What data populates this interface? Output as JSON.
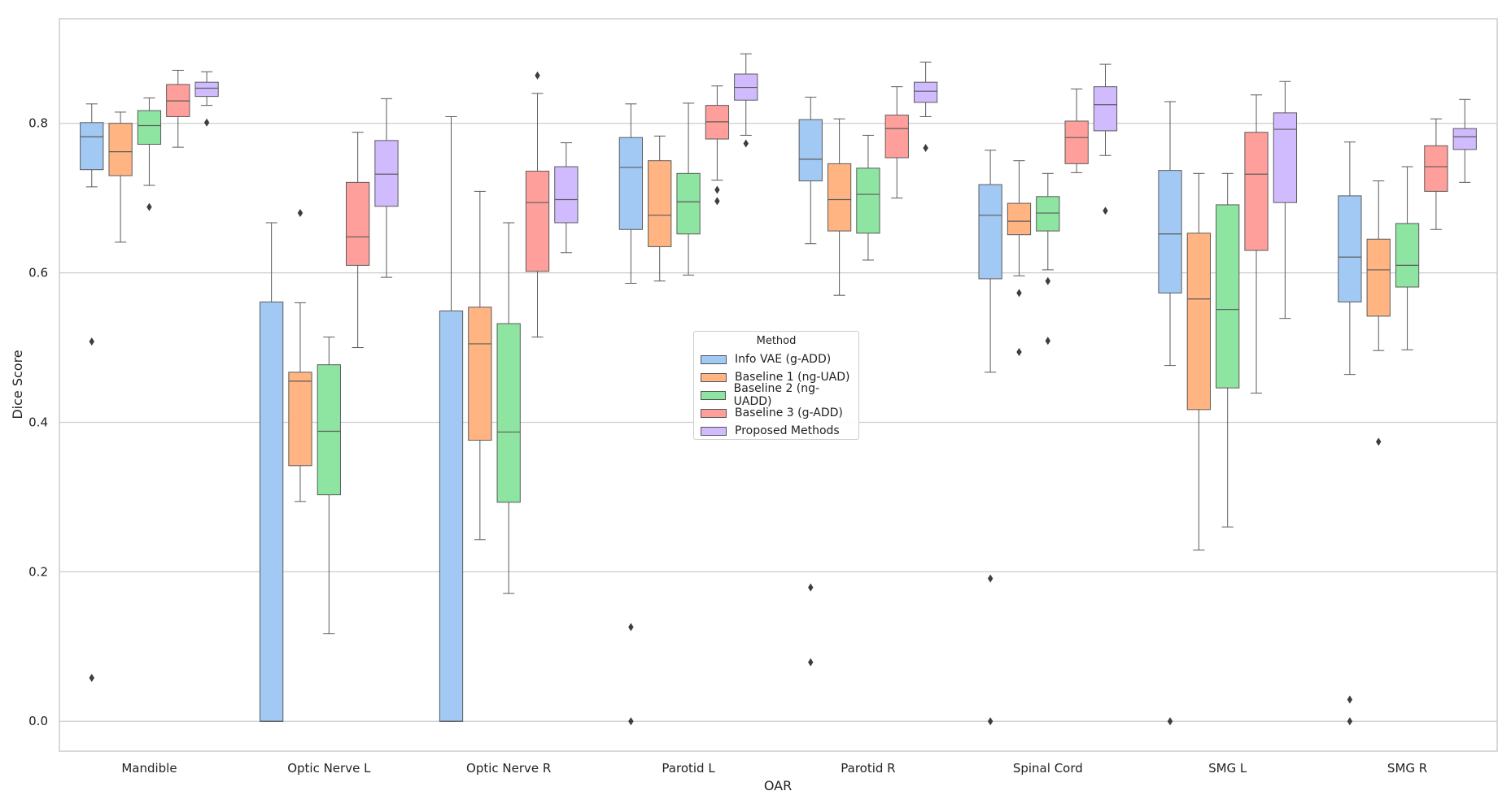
{
  "chart_data": {
    "type": "boxplot",
    "title": "",
    "xlabel": "OAR",
    "ylabel": "Dice Score",
    "ylim": [
      -0.04,
      0.94
    ],
    "yticks": [
      "0.0",
      "0.2",
      "0.4",
      "0.6",
      "0.8"
    ],
    "grid": "horizontal",
    "legend_title": "Method",
    "legend_placement": "center",
    "categories": [
      "Mandible",
      "Optic Nerve L",
      "Optic Nerve R",
      "Parotid L",
      "Parotid R",
      "Spinal Cord",
      "SMG L",
      "SMG R"
    ],
    "series": [
      {
        "name": "Info VAE (g-ADD)",
        "color": "#a1c9f4",
        "boxes": [
          {
            "whislo": 0.715,
            "q1": 0.738,
            "med": 0.782,
            "q3": 0.801,
            "whishi": 0.826,
            "fliers": [
              0.508,
              0.058
            ]
          },
          {
            "whislo": 0.0,
            "q1": 0.0,
            "med": 0.0,
            "q3": 0.561,
            "whishi": 0.667,
            "fliers": []
          },
          {
            "whislo": 0.0,
            "q1": 0.0,
            "med": 0.0,
            "q3": 0.549,
            "whishi": 0.809,
            "fliers": []
          },
          {
            "whislo": 0.586,
            "q1": 0.658,
            "med": 0.741,
            "q3": 0.781,
            "whishi": 0.826,
            "fliers": [
              0.126,
              0.0
            ]
          },
          {
            "whislo": 0.639,
            "q1": 0.723,
            "med": 0.752,
            "q3": 0.805,
            "whishi": 0.835,
            "fliers": [
              0.179,
              0.079
            ]
          },
          {
            "whislo": 0.467,
            "q1": 0.592,
            "med": 0.677,
            "q3": 0.718,
            "whishi": 0.764,
            "fliers": [
              0.191,
              0.0
            ]
          },
          {
            "whislo": 0.476,
            "q1": 0.573,
            "med": 0.652,
            "q3": 0.737,
            "whishi": 0.829,
            "fliers": [
              0.0
            ]
          },
          {
            "whislo": 0.464,
            "q1": 0.561,
            "med": 0.621,
            "q3": 0.703,
            "whishi": 0.775,
            "fliers": [
              0.029,
              0.0
            ]
          }
        ]
      },
      {
        "name": "Baseline 1 (ng-UAD)",
        "color": "#ffb482",
        "boxes": [
          {
            "whislo": 0.641,
            "q1": 0.73,
            "med": 0.762,
            "q3": 0.8,
            "whishi": 0.815,
            "fliers": []
          },
          {
            "whislo": 0.294,
            "q1": 0.342,
            "med": 0.455,
            "q3": 0.467,
            "whishi": 0.56,
            "fliers": [
              0.68
            ]
          },
          {
            "whislo": 0.243,
            "q1": 0.376,
            "med": 0.505,
            "q3": 0.554,
            "whishi": 0.709,
            "fliers": []
          },
          {
            "whislo": 0.589,
            "q1": 0.635,
            "med": 0.677,
            "q3": 0.75,
            "whishi": 0.783,
            "fliers": []
          },
          {
            "whislo": 0.57,
            "q1": 0.656,
            "med": 0.698,
            "q3": 0.746,
            "whishi": 0.806,
            "fliers": []
          },
          {
            "whislo": 0.596,
            "q1": 0.651,
            "med": 0.669,
            "q3": 0.693,
            "whishi": 0.75,
            "fliers": [
              0.573,
              0.494
            ]
          },
          {
            "whislo": 0.229,
            "q1": 0.417,
            "med": 0.565,
            "q3": 0.653,
            "whishi": 0.733,
            "fliers": []
          },
          {
            "whislo": 0.496,
            "q1": 0.542,
            "med": 0.604,
            "q3": 0.645,
            "whishi": 0.723,
            "fliers": [
              0.374
            ]
          }
        ]
      },
      {
        "name": "Baseline 2 (ng-UADD)",
        "color": "#8de5a1",
        "boxes": [
          {
            "whislo": 0.717,
            "q1": 0.772,
            "med": 0.797,
            "q3": 0.817,
            "whishi": 0.834,
            "fliers": [
              0.688
            ]
          },
          {
            "whislo": 0.117,
            "q1": 0.303,
            "med": 0.388,
            "q3": 0.477,
            "whishi": 0.514,
            "fliers": []
          },
          {
            "whislo": 0.171,
            "q1": 0.293,
            "med": 0.387,
            "q3": 0.532,
            "whishi": 0.667,
            "fliers": []
          },
          {
            "whislo": 0.597,
            "q1": 0.652,
            "med": 0.695,
            "q3": 0.733,
            "whishi": 0.827,
            "fliers": []
          },
          {
            "whislo": 0.617,
            "q1": 0.653,
            "med": 0.705,
            "q3": 0.74,
            "whishi": 0.784,
            "fliers": []
          },
          {
            "whislo": 0.604,
            "q1": 0.656,
            "med": 0.68,
            "q3": 0.702,
            "whishi": 0.733,
            "fliers": [
              0.589,
              0.509
            ]
          },
          {
            "whislo": 0.26,
            "q1": 0.446,
            "med": 0.551,
            "q3": 0.691,
            "whishi": 0.733,
            "fliers": []
          },
          {
            "whislo": 0.497,
            "q1": 0.581,
            "med": 0.61,
            "q3": 0.666,
            "whishi": 0.742,
            "fliers": []
          }
        ]
      },
      {
        "name": "Baseline 3 (g-ADD)",
        "color": "#ff9f9b",
        "boxes": [
          {
            "whislo": 0.768,
            "q1": 0.809,
            "med": 0.83,
            "q3": 0.852,
            "whishi": 0.871,
            "fliers": []
          },
          {
            "whislo": 0.5,
            "q1": 0.61,
            "med": 0.648,
            "q3": 0.721,
            "whishi": 0.788,
            "fliers": []
          },
          {
            "whislo": 0.514,
            "q1": 0.602,
            "med": 0.694,
            "q3": 0.736,
            "whishi": 0.84,
            "fliers": [
              0.864
            ]
          },
          {
            "whislo": 0.724,
            "q1": 0.779,
            "med": 0.802,
            "q3": 0.824,
            "whishi": 0.85,
            "fliers": [
              0.711,
              0.696
            ]
          },
          {
            "whislo": 0.7,
            "q1": 0.754,
            "med": 0.793,
            "q3": 0.811,
            "whishi": 0.849,
            "fliers": []
          },
          {
            "whislo": 0.734,
            "q1": 0.746,
            "med": 0.781,
            "q3": 0.803,
            "whishi": 0.846,
            "fliers": []
          },
          {
            "whislo": 0.439,
            "q1": 0.63,
            "med": 0.732,
            "q3": 0.788,
            "whishi": 0.838,
            "fliers": []
          },
          {
            "whislo": 0.658,
            "q1": 0.709,
            "med": 0.742,
            "q3": 0.77,
            "whishi": 0.806,
            "fliers": []
          }
        ]
      },
      {
        "name": "Proposed Methods",
        "color": "#d0bbff",
        "boxes": [
          {
            "whislo": 0.824,
            "q1": 0.836,
            "med": 0.847,
            "q3": 0.855,
            "whishi": 0.869,
            "fliers": [
              0.801
            ]
          },
          {
            "whislo": 0.594,
            "q1": 0.689,
            "med": 0.732,
            "q3": 0.777,
            "whishi": 0.833,
            "fliers": []
          },
          {
            "whislo": 0.627,
            "q1": 0.667,
            "med": 0.698,
            "q3": 0.742,
            "whishi": 0.774,
            "fliers": []
          },
          {
            "whislo": 0.784,
            "q1": 0.831,
            "med": 0.848,
            "q3": 0.866,
            "whishi": 0.893,
            "fliers": [
              0.773
            ]
          },
          {
            "whislo": 0.809,
            "q1": 0.828,
            "med": 0.843,
            "q3": 0.855,
            "whishi": 0.882,
            "fliers": [
              0.767
            ]
          },
          {
            "whislo": 0.757,
            "q1": 0.79,
            "med": 0.825,
            "q3": 0.849,
            "whishi": 0.879,
            "fliers": [
              0.683
            ]
          },
          {
            "whislo": 0.539,
            "q1": 0.694,
            "med": 0.792,
            "q3": 0.814,
            "whishi": 0.856,
            "fliers": []
          },
          {
            "whislo": 0.721,
            "q1": 0.765,
            "med": 0.782,
            "q3": 0.793,
            "whishi": 0.832,
            "fliers": []
          }
        ]
      }
    ]
  }
}
